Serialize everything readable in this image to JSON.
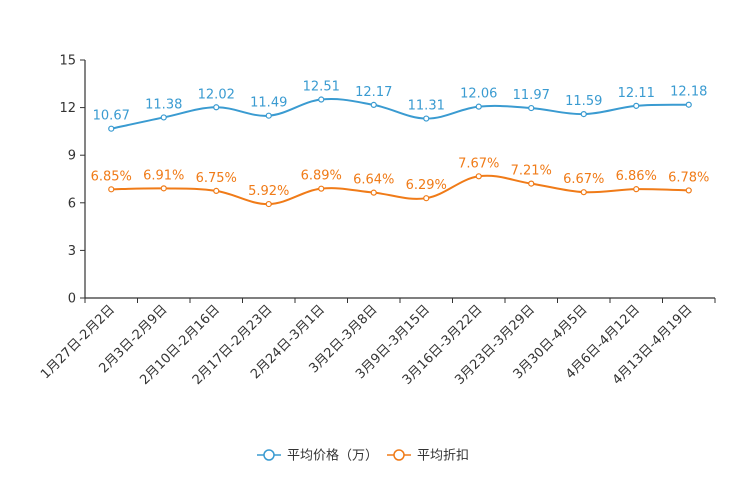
{
  "chart_data": {
    "type": "line",
    "categories": [
      "1月27日-2月2日",
      "2月3日-2月9日",
      "2月10日-2月16日",
      "2月17日-2月23日",
      "2月24日-3月1日",
      "3月2日-3月8日",
      "3月9日-3月15日",
      "3月16日-3月22日",
      "3月23日-3月29日",
      "3月30日-4月5日",
      "4月6日-4月12日",
      "4月13日-4月19日"
    ],
    "y_ticks": [
      "0",
      "3",
      "6",
      "9",
      "12",
      "15"
    ],
    "ylim": [
      0,
      15
    ],
    "series": [
      {
        "name": "平均价格（万）",
        "color": "#3a9bd1",
        "values": [
          10.67,
          11.38,
          12.02,
          11.49,
          12.51,
          12.17,
          11.31,
          12.06,
          11.97,
          11.59,
          12.11,
          12.18
        ],
        "labels": [
          "10.67",
          "11.38",
          "12.02",
          "11.49",
          "12.51",
          "12.17",
          "11.31",
          "12.06",
          "11.97",
          "11.59",
          "12.11",
          "12.18"
        ]
      },
      {
        "name": "平均折扣",
        "color": "#f07b18",
        "values": [
          6.85,
          6.91,
          6.75,
          5.92,
          6.89,
          6.64,
          6.29,
          7.67,
          7.21,
          6.67,
          6.86,
          6.78
        ],
        "labels": [
          "6.85%",
          "6.91%",
          "6.75%",
          "5.92%",
          "6.89%",
          "6.64%",
          "6.29%",
          "7.67%",
          "7.21%",
          "6.67%",
          "6.86%",
          "6.78%"
        ]
      }
    ],
    "legend_position": "bottom-center"
  }
}
